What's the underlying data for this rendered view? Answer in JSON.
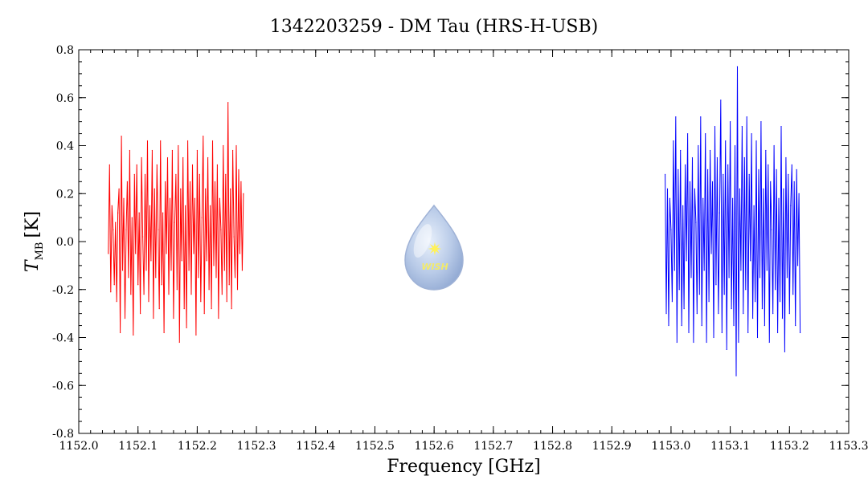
{
  "chart_data": {
    "type": "line",
    "title": "1342203259 - DM Tau (HRS-H-USB)",
    "xlabel": "Frequency [GHz]",
    "ylabel_main": "T",
    "ylabel_sub": "MB",
    "ylabel_unit": "[K]",
    "xlim": [
      1152.0,
      1153.3
    ],
    "ylim": [
      -0.8,
      0.8
    ],
    "xticks": [
      "1152.0",
      "1152.1",
      "1152.2",
      "1152.3",
      "1152.4",
      "1152.5",
      "1152.6",
      "1152.7",
      "1152.8",
      "1152.9",
      "1153.0",
      "1153.1",
      "1153.2",
      "1153.3"
    ],
    "xtick_values": [
      1152.0,
      1152.1,
      1152.2,
      1152.3,
      1152.4,
      1152.5,
      1152.6,
      1152.7,
      1152.8,
      1152.9,
      1153.0,
      1153.1,
      1153.2,
      1153.3
    ],
    "yticks": [
      "-0.8",
      "-0.6",
      "-0.4",
      "-0.2",
      "0.0",
      "0.2",
      "0.4",
      "0.6",
      "0.8"
    ],
    "ytick_values": [
      -0.8,
      -0.6,
      -0.4,
      -0.2,
      0.0,
      0.2,
      0.4,
      0.6,
      0.8
    ],
    "grid": false,
    "series": [
      {
        "color": "#ff0000",
        "x": [
          1152.05,
          1152.052,
          1152.054,
          1152.056,
          1152.058,
          1152.06,
          1152.062,
          1152.064,
          1152.066,
          1152.068,
          1152.07,
          1152.072,
          1152.074,
          1152.076,
          1152.078,
          1152.08,
          1152.082,
          1152.084,
          1152.086,
          1152.088,
          1152.09,
          1152.092,
          1152.094,
          1152.096,
          1152.098,
          1152.1,
          1152.102,
          1152.104,
          1152.106,
          1152.108,
          1152.11,
          1152.112,
          1152.114,
          1152.116,
          1152.118,
          1152.12,
          1152.122,
          1152.124,
          1152.126,
          1152.128,
          1152.13,
          1152.132,
          1152.134,
          1152.136,
          1152.138,
          1152.14,
          1152.142,
          1152.144,
          1152.146,
          1152.148,
          1152.15,
          1152.152,
          1152.154,
          1152.156,
          1152.158,
          1152.16,
          1152.162,
          1152.164,
          1152.166,
          1152.168,
          1152.17,
          1152.172,
          1152.174,
          1152.176,
          1152.178,
          1152.18,
          1152.182,
          1152.184,
          1152.186,
          1152.188,
          1152.19,
          1152.192,
          1152.194,
          1152.196,
          1152.198,
          1152.2,
          1152.202,
          1152.204,
          1152.206,
          1152.208,
          1152.21,
          1152.212,
          1152.214,
          1152.216,
          1152.218,
          1152.22,
          1152.222,
          1152.224,
          1152.226,
          1152.228,
          1152.23,
          1152.232,
          1152.234,
          1152.236,
          1152.238,
          1152.24,
          1152.242,
          1152.244,
          1152.246,
          1152.248,
          1152.25,
          1152.252,
          1152.254,
          1152.256,
          1152.258,
          1152.26,
          1152.262,
          1152.264,
          1152.266,
          1152.268,
          1152.27,
          1152.272,
          1152.274,
          1152.276,
          1152.278
        ],
        "y": [
          -0.05,
          0.32,
          -0.21,
          0.15,
          0.05,
          -0.18,
          0.08,
          -0.25,
          0.12,
          0.22,
          -0.38,
          0.44,
          -0.12,
          0.18,
          -0.32,
          0.05,
          0.25,
          -0.15,
          0.38,
          -0.22,
          0.1,
          -0.39,
          0.28,
          -0.05,
          0.32,
          -0.18,
          0.12,
          -0.3,
          0.35,
          0.02,
          -0.22,
          0.28,
          -0.12,
          0.42,
          -0.25,
          0.15,
          -0.08,
          0.38,
          -0.32,
          0.22,
          -0.15,
          0.32,
          0.05,
          -0.28,
          0.42,
          -0.18,
          0.12,
          -0.38,
          0.25,
          -0.05,
          0.35,
          -0.22,
          0.18,
          -0.12,
          0.38,
          -0.32,
          0.08,
          0.28,
          -0.2,
          0.4,
          -0.42,
          0.22,
          -0.08,
          0.35,
          -0.28,
          0.15,
          -0.36,
          0.42,
          -0.12,
          0.25,
          -0.22,
          0.32,
          -0.05,
          0.18,
          -0.39,
          0.38,
          -0.15,
          0.28,
          -0.25,
          0.1,
          0.44,
          -0.3,
          0.22,
          -0.08,
          0.35,
          -0.2,
          0.15,
          -0.28,
          0.42,
          -0.1,
          0.25,
          -0.15,
          0.32,
          -0.32,
          0.18,
          0.05,
          -0.22,
          0.4,
          -0.12,
          0.28,
          -0.25,
          0.58,
          -0.18,
          0.22,
          -0.28,
          0.38,
          0.02,
          -0.15,
          0.4,
          -0.2,
          0.3,
          -0.05,
          0.25,
          -0.12,
          0.2
        ]
      },
      {
        "color": "#0000ff",
        "x": [
          1152.99,
          1152.992,
          1152.994,
          1152.996,
          1152.998,
          1153.0,
          1153.002,
          1153.004,
          1153.006,
          1153.008,
          1153.01,
          1153.012,
          1153.014,
          1153.016,
          1153.018,
          1153.02,
          1153.022,
          1153.024,
          1153.026,
          1153.028,
          1153.03,
          1153.032,
          1153.034,
          1153.036,
          1153.038,
          1153.04,
          1153.042,
          1153.044,
          1153.046,
          1153.048,
          1153.05,
          1153.052,
          1153.054,
          1153.056,
          1153.058,
          1153.06,
          1153.062,
          1153.064,
          1153.066,
          1153.068,
          1153.07,
          1153.072,
          1153.074,
          1153.076,
          1153.078,
          1153.08,
          1153.082,
          1153.084,
          1153.086,
          1153.088,
          1153.09,
          1153.092,
          1153.094,
          1153.096,
          1153.098,
          1153.1,
          1153.102,
          1153.104,
          1153.106,
          1153.108,
          1153.11,
          1153.112,
          1153.114,
          1153.116,
          1153.118,
          1153.12,
          1153.122,
          1153.124,
          1153.126,
          1153.128,
          1153.13,
          1153.132,
          1153.134,
          1153.136,
          1153.138,
          1153.14,
          1153.142,
          1153.144,
          1153.146,
          1153.148,
          1153.15,
          1153.152,
          1153.154,
          1153.156,
          1153.158,
          1153.16,
          1153.162,
          1153.164,
          1153.166,
          1153.168,
          1153.17,
          1153.172,
          1153.174,
          1153.176,
          1153.178,
          1153.18,
          1153.182,
          1153.184,
          1153.186,
          1153.188,
          1153.19,
          1153.192,
          1153.194,
          1153.196,
          1153.198,
          1153.2,
          1153.202,
          1153.204,
          1153.206,
          1153.208,
          1153.21,
          1153.212,
          1153.214,
          1153.216,
          1153.218
        ],
        "y": [
          0.28,
          -0.3,
          0.22,
          -0.35,
          0.18,
          0.05,
          -0.25,
          0.42,
          -0.12,
          0.52,
          -0.42,
          0.3,
          -0.2,
          0.38,
          -0.35,
          0.15,
          -0.28,
          0.32,
          -0.08,
          0.45,
          -0.38,
          0.25,
          -0.15,
          0.35,
          -0.42,
          0.22,
          0.08,
          -0.3,
          0.4,
          -0.22,
          0.52,
          -0.35,
          0.18,
          -0.12,
          0.45,
          -0.42,
          0.3,
          -0.25,
          0.38,
          -0.05,
          0.25,
          -0.4,
          0.48,
          -0.18,
          0.35,
          -0.3,
          0.12,
          0.59,
          -0.38,
          0.28,
          -0.22,
          0.42,
          -0.45,
          0.32,
          -0.15,
          0.5,
          -0.28,
          0.18,
          -0.35,
          0.4,
          -0.56,
          0.73,
          -0.42,
          0.22,
          -0.12,
          0.48,
          -0.3,
          0.35,
          -0.2,
          0.52,
          -0.38,
          0.28,
          -0.08,
          0.45,
          -0.32,
          0.15,
          -0.25,
          0.42,
          -0.4,
          0.3,
          -0.15,
          0.5,
          -0.28,
          0.22,
          -0.35,
          0.38,
          -0.12,
          0.32,
          -0.42,
          0.25,
          0.05,
          -0.3,
          0.4,
          -0.2,
          0.3,
          -0.38,
          0.18,
          -0.25,
          0.48,
          -0.32,
          0.22,
          -0.46,
          0.35,
          -0.15,
          0.28,
          -0.3,
          0.15,
          0.32,
          -0.22,
          0.25,
          -0.35,
          0.3,
          -0.1,
          0.2,
          -0.38
        ]
      }
    ],
    "logo": {
      "text": "WISH",
      "icon": "water-drop-star-logo",
      "x": 1152.6,
      "y": -0.07
    }
  }
}
